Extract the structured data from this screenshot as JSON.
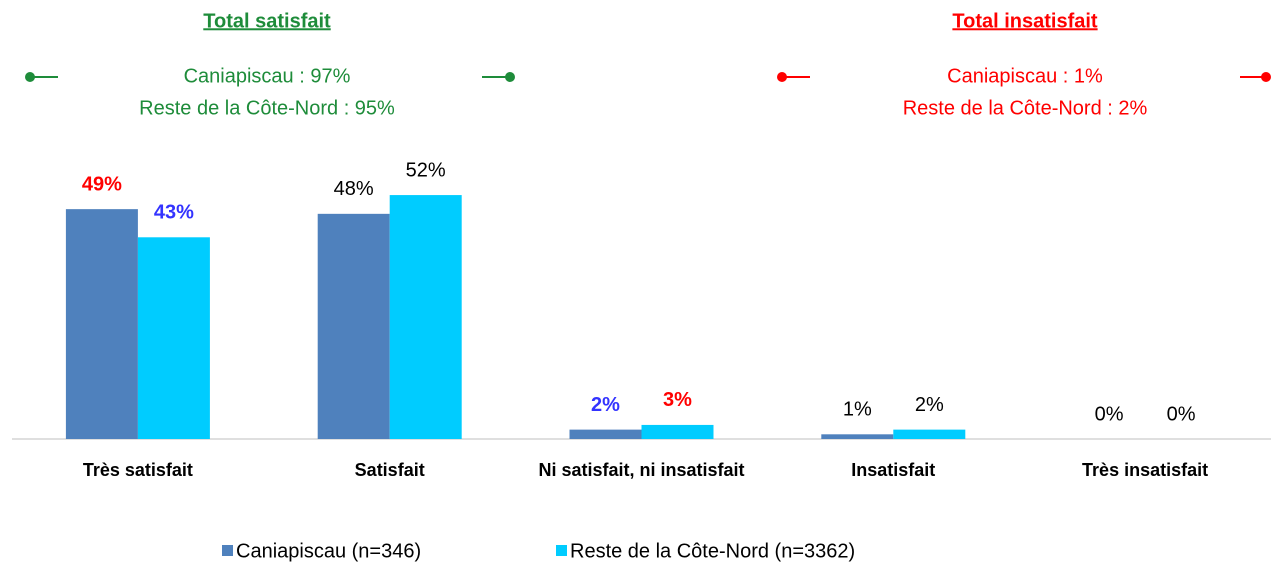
{
  "chart_data": {
    "type": "bar",
    "categories": [
      "Très satisfait",
      "Satisfait",
      "Ni satisfait, ni insatisfait",
      "Insatisfait",
      "Très insatisfait"
    ],
    "series": [
      {
        "name": "Caniapiscau (n=346)",
        "color": "#4f81bd",
        "values": [
          49,
          48,
          2,
          1,
          0
        ],
        "value_labels": [
          "49%",
          "48%",
          "2%",
          "1%",
          "0%"
        ],
        "value_label_colors": [
          "#ff0000",
          "#000000",
          "#3333ff",
          "#000000",
          "#000000"
        ]
      },
      {
        "name": "Reste de la Côte-Nord (n=3362)",
        "color": "#00ccff",
        "values": [
          43,
          52,
          3,
          2,
          0
        ],
        "value_labels": [
          "43%",
          "52%",
          "3%",
          "2%",
          "0%"
        ],
        "value_label_colors": [
          "#3333ff",
          "#000000",
          "#ff0000",
          "#000000",
          "#000000"
        ]
      }
    ],
    "ylim": [
      0,
      55
    ],
    "annotations": [
      {
        "title": "Total satisfait",
        "color": "#1e8c3a",
        "lines": [
          "Caniapiscau : 97%",
          "Reste de la Côte-Nord : 95%"
        ]
      },
      {
        "title": "Total insatisfait",
        "color": "#ff0000",
        "lines": [
          "Caniapiscau : 1%",
          "Reste de la Côte-Nord : 2%"
        ]
      }
    ]
  }
}
